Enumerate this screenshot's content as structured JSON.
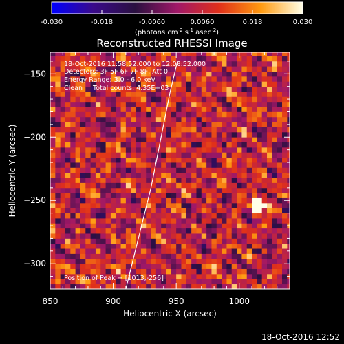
{
  "chart_data": {
    "type": "heatmap",
    "title": "Reconstructed RHESSI Image",
    "xlabel": "Heliocentric X (arcsec)",
    "ylabel": "Heliocentric Y (arcsec)",
    "xlim": [
      850,
      1040
    ],
    "ylim": [
      -320,
      -133
    ],
    "x_ticks": [
      850,
      900,
      950,
      1000
    ],
    "y_ticks": [
      -150,
      -200,
      -250,
      -300
    ],
    "grid": false,
    "colorbar": {
      "range": [
        -0.03,
        0.03
      ],
      "tick_labels": [
        "-0.030",
        "-0.018",
        "-0.0060",
        "0.0060",
        "0.018",
        "0.030"
      ],
      "label_main": "(photons cm",
      "label_exp1": "-2",
      "label_mid1": " s",
      "label_exp2": "-1",
      "label_mid2": " asec",
      "label_exp3": "-2",
      "label_end": ")"
    },
    "annotations": [
      "18-Oct-2016 11:58:52.000 to 12:08:52.000",
      "Detectors: 3F 5F 6F 7F 8F, Att 0",
      "Energy Range: 3.0 - 6.0 keV",
      "Clean     Total counts: 4.35E+03"
    ],
    "peak_label": "Position of Peak = [1013,-256]",
    "peak_position": [
      1013,
      -256
    ],
    "limb_curve_x": [
      910,
      920,
      930,
      938,
      945,
      951
    ],
    "limb_curve_y": [
      -320,
      -280,
      -240,
      -200,
      -165,
      -140
    ],
    "pixel_size_arcsec": 4,
    "intensity_grid_seed": 73,
    "footer": "18-Oct-2016 12:52",
    "colors": {
      "background": "#000000",
      "text": "#ffffff",
      "limb": "#ffffff",
      "colormap": [
        "#0000ff",
        "#3a0a8a",
        "#2a1040",
        "#a01868",
        "#e0301a",
        "#ff9a10",
        "#ffffe8"
      ]
    }
  }
}
